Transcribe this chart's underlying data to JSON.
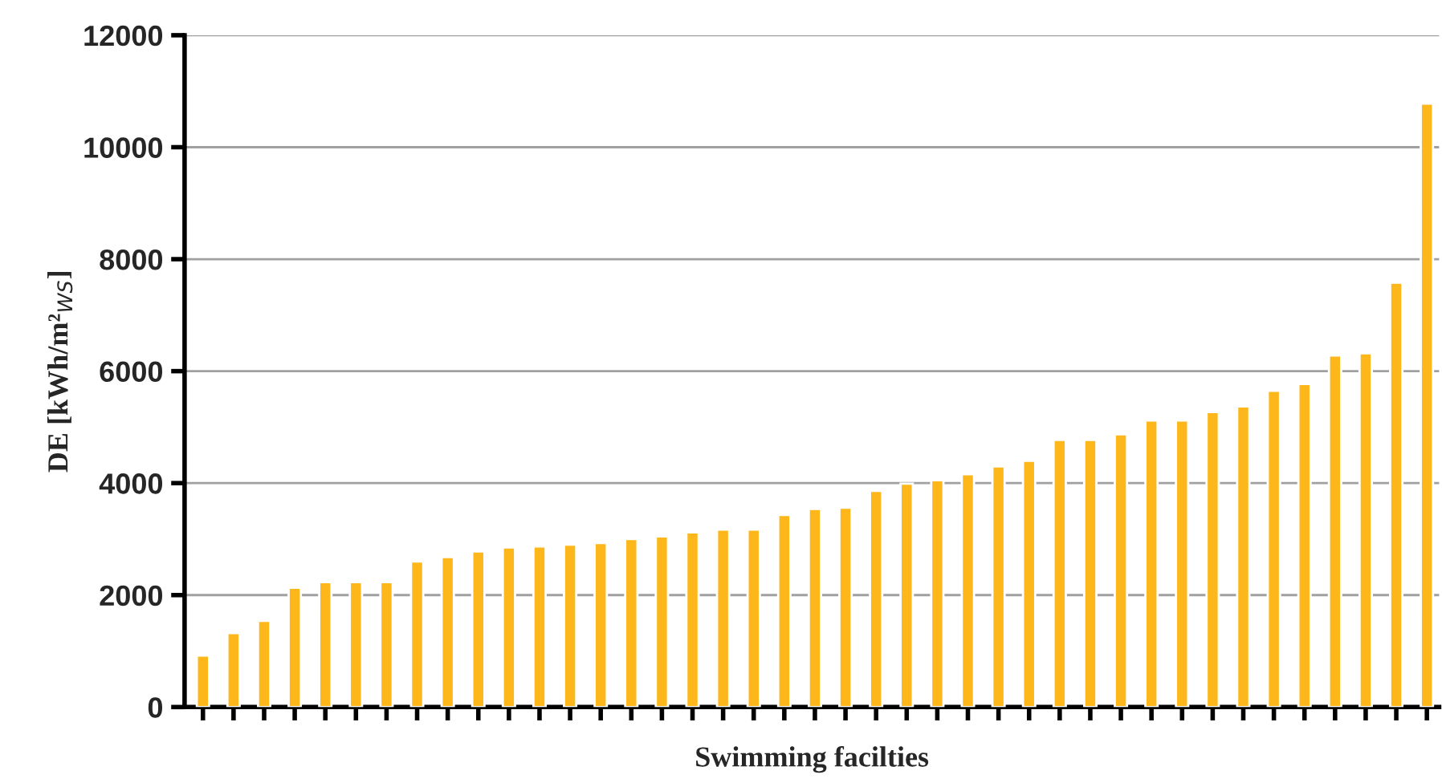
{
  "chart_data": {
    "type": "bar",
    "xlabel": "Swimming facilties",
    "ylabel": "DE [kWh/m²$_{WS}$]",
    "categories": [
      null,
      null,
      null,
      null,
      null,
      null,
      null,
      null,
      null,
      null,
      null,
      null,
      null,
      null,
      null,
      null,
      null,
      null,
      null,
      null,
      null,
      null,
      null,
      null,
      null,
      null,
      null,
      null,
      null,
      null,
      null,
      null,
      null,
      null,
      null,
      null,
      null,
      null,
      null,
      null,
      null
    ],
    "values": [
      920,
      1320,
      1540,
      2130,
      2230,
      2230,
      2230,
      2600,
      2680,
      2780,
      2850,
      2870,
      2900,
      2930,
      3000,
      3050,
      3120,
      3170,
      3170,
      3430,
      3540,
      3560,
      3860,
      3990,
      4050,
      4160,
      4300,
      4400,
      4770,
      4770,
      4870,
      5120,
      5120,
      5270,
      5370,
      5650,
      5770,
      6280,
      6320,
      7580,
      10780
    ],
    "color": "#fdb71a",
    "ylim": [
      0,
      12000
    ],
    "yticks": [
      0,
      2000,
      4000,
      6000,
      8000,
      10000,
      12000
    ],
    "grid": "y",
    "legend": false
  }
}
